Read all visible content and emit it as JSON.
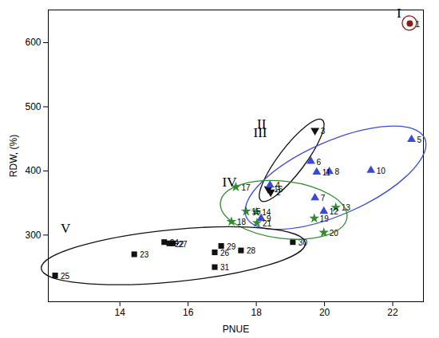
{
  "chart_data": {
    "type": "scatter",
    "x_label": "PNUE",
    "y_label": "RDW, (%)",
    "xlim": [
      11.9,
      22.9
    ],
    "ylim": [
      196,
      651
    ],
    "xticks": [
      14,
      16,
      18,
      20,
      22
    ],
    "yticks": [
      300,
      400,
      500,
      600
    ],
    "grid": false,
    "series": [
      {
        "name": "I",
        "color": "#8b1a1a",
        "marker": "circle",
        "labels": [
          "1"
        ],
        "x": [
          22.5
        ],
        "y": [
          630
        ]
      },
      {
        "name": "II",
        "color": "#111111",
        "marker": "triangle-down",
        "labels": [
          "3",
          "2",
          "16"
        ],
        "x": [
          19.72,
          18.42,
          18.35
        ],
        "y": [
          463,
          367,
          372
        ]
      },
      {
        "name": "III",
        "color": "#3a4ad8",
        "marker": "triangle",
        "labels": [
          "4",
          "5",
          "6",
          "7",
          "8",
          "9",
          "10",
          "11",
          "12"
        ],
        "x": [
          18.4,
          22.55,
          19.6,
          19.72,
          20.14,
          18.14,
          21.36,
          19.77,
          19.98
        ],
        "y": [
          378,
          449,
          415,
          358,
          399,
          326,
          401,
          398,
          337
        ]
      },
      {
        "name": "IV",
        "color": "#2e8b2e",
        "marker": "star",
        "labels": [
          "13",
          "14",
          "15",
          "17",
          "18",
          "19",
          "20",
          "21"
        ],
        "x": [
          20.33,
          18.0,
          17.7,
          17.4,
          17.27,
          19.7,
          19.98,
          18.02
        ],
        "y": [
          343,
          336,
          337,
          375,
          321,
          326,
          304,
          319
        ]
      },
      {
        "name": "V",
        "color": "#111111",
        "marker": "square",
        "labels": [
          "22",
          "23",
          "24",
          "25",
          "26",
          "27",
          "28",
          "29",
          "30",
          "31"
        ],
        "x": [
          15.45,
          14.42,
          15.3,
          12.1,
          16.78,
          15.55,
          17.55,
          16.97,
          19.07,
          16.78
        ],
        "y": [
          287,
          270,
          289,
          237,
          273,
          287,
          276,
          283,
          289,
          250
        ]
      }
    ]
  }
}
